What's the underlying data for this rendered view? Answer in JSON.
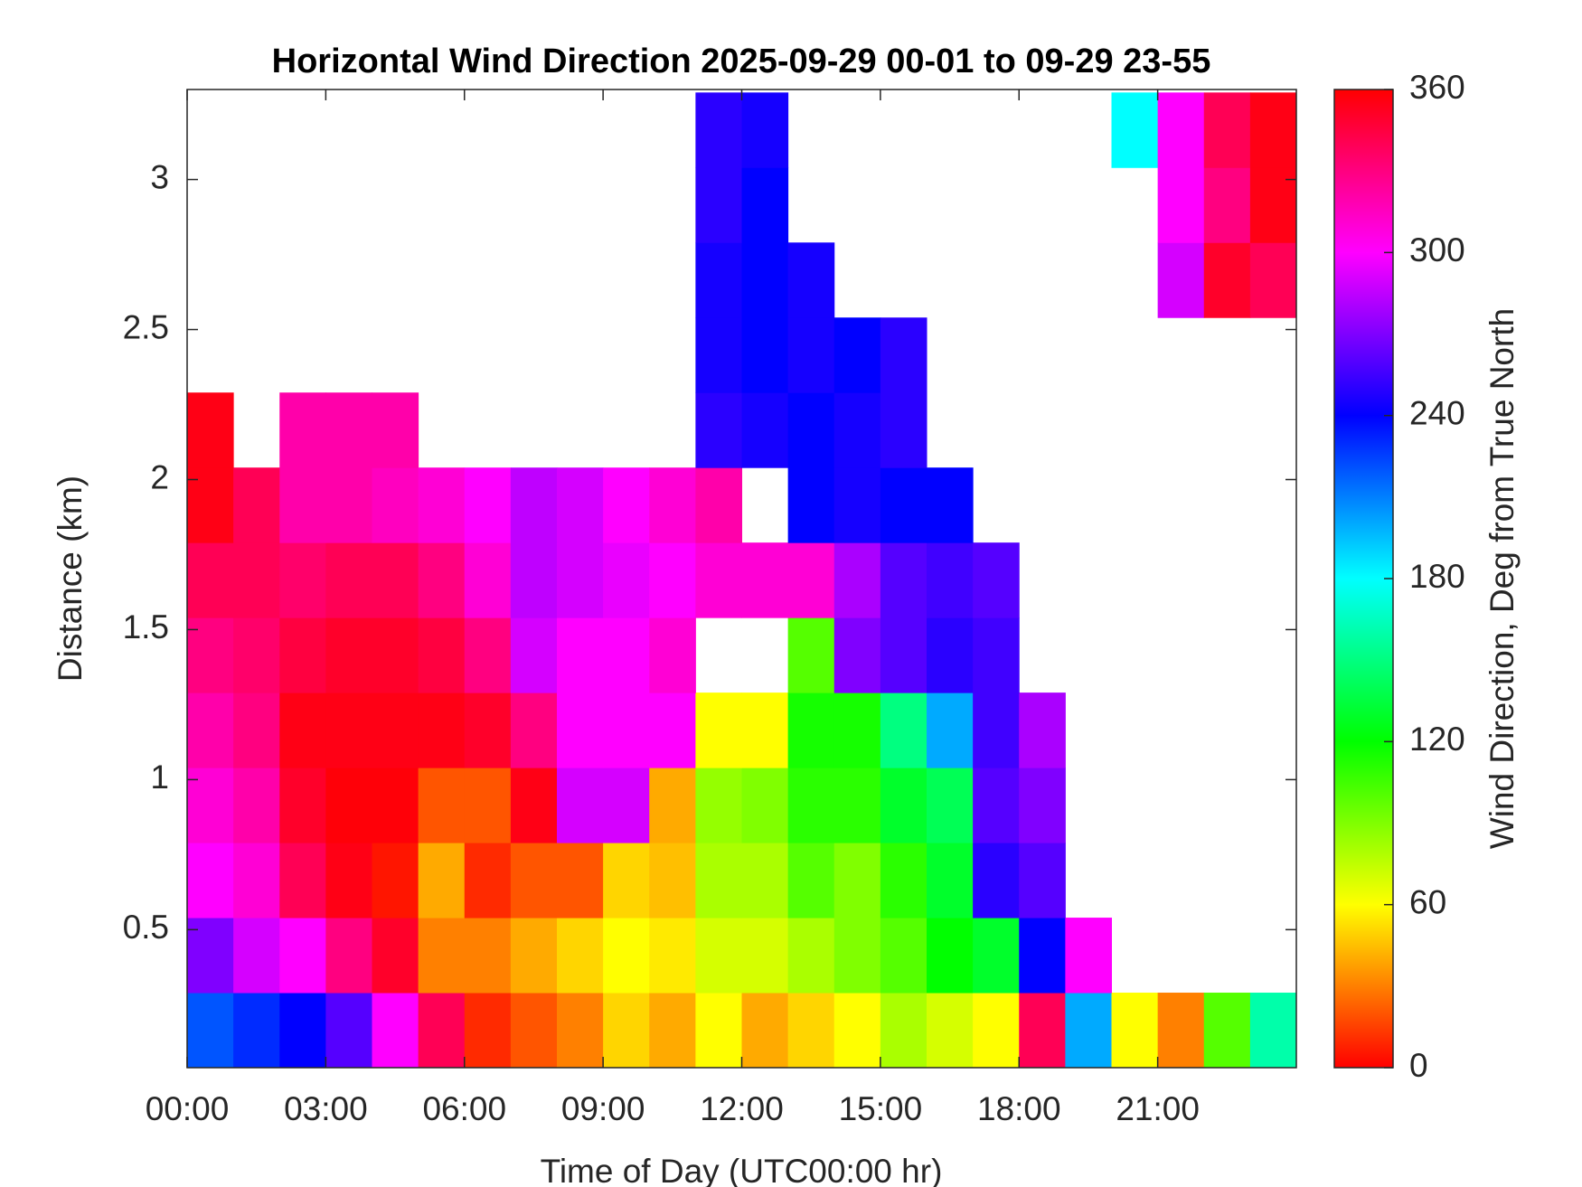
{
  "chart_data": {
    "type": "heatmap",
    "title": "Horizontal Wind Direction 2025-09-29 00-01 to 09-29 23-55",
    "x_label": "Time of Day (UTC00:00 hr)",
    "y_label": "Distance (km)",
    "colorbar_label": "Wind Direction, Deg from True North",
    "colormap": "hsv",
    "xlim": [
      0,
      24
    ],
    "xticks": [
      {
        "value": 0,
        "label": "00:00"
      },
      {
        "value": 3,
        "label": "03:00"
      },
      {
        "value": 6,
        "label": "06:00"
      },
      {
        "value": 9,
        "label": "09:00"
      },
      {
        "value": 12,
        "label": "12:00"
      },
      {
        "value": 15,
        "label": "15:00"
      },
      {
        "value": 18,
        "label": "18:00"
      },
      {
        "value": 21,
        "label": "21:00"
      }
    ],
    "ylim": [
      0.04,
      3.3
    ],
    "yticks": [
      0.5,
      1,
      1.5,
      2,
      2.5,
      3
    ],
    "clim": [
      0,
      360
    ],
    "cticks": [
      0,
      60,
      120,
      180,
      240,
      300,
      360
    ],
    "x_edges": [
      0,
      1,
      2,
      3,
      4,
      5,
      6,
      7,
      8,
      9,
      10,
      11,
      12,
      13,
      14,
      15,
      16,
      17,
      18,
      19,
      20,
      21,
      22,
      23,
      24
    ],
    "y_edges": [
      0.04,
      0.29,
      0.54,
      0.79,
      1.04,
      1.29,
      1.54,
      1.79,
      2.04,
      2.29,
      2.54,
      2.79,
      3.04,
      3.29
    ],
    "z": [
      [
        220,
        230,
        240,
        260,
        300,
        340,
        10,
        20,
        30,
        50,
        40,
        60,
        40,
        50,
        60,
        80,
        70,
        60,
        340,
        200,
        60,
        30,
        100,
        160
      ],
      [
        270,
        290,
        300,
        330,
        350,
        30,
        30,
        40,
        50,
        60,
        55,
        70,
        70,
        80,
        90,
        100,
        120,
        130,
        240,
        300,
        null,
        null,
        null,
        null
      ],
      [
        300,
        310,
        340,
        355,
        5,
        40,
        10,
        20,
        20,
        50,
        45,
        80,
        80,
        100,
        90,
        110,
        130,
        250,
        260,
        null,
        null,
        null,
        null,
        null
      ],
      [
        310,
        320,
        350,
        358,
        358,
        20,
        20,
        355,
        290,
        290,
        40,
        85,
        90,
        110,
        110,
        130,
        140,
        260,
        270,
        null,
        null,
        null,
        null,
        null
      ],
      [
        320,
        330,
        355,
        355,
        355,
        355,
        350,
        330,
        300,
        300,
        300,
        60,
        60,
        115,
        115,
        150,
        200,
        255,
        280,
        null,
        null,
        null,
        null,
        null
      ],
      [
        330,
        335,
        345,
        350,
        350,
        345,
        330,
        290,
        300,
        300,
        310,
        null,
        null,
        100,
        270,
        260,
        250,
        255,
        null,
        null,
        null,
        null,
        null,
        null
      ],
      [
        340,
        340,
        335,
        340,
        340,
        330,
        310,
        285,
        290,
        295,
        300,
        310,
        310,
        310,
        280,
        260,
        255,
        260,
        null,
        null,
        null,
        null,
        null,
        null
      ],
      [
        355,
        340,
        320,
        320,
        315,
        310,
        300,
        285,
        290,
        300,
        310,
        320,
        null,
        240,
        245,
        240,
        240,
        null,
        null,
        null,
        null,
        null,
        null,
        null
      ],
      [
        355,
        null,
        320,
        320,
        320,
        null,
        null,
        null,
        null,
        null,
        null,
        250,
        245,
        240,
        245,
        250,
        null,
        null,
        null,
        null,
        null,
        null,
        null,
        null
      ],
      [
        null,
        null,
        null,
        null,
        null,
        null,
        null,
        null,
        null,
        null,
        null,
        245,
        240,
        245,
        240,
        250,
        null,
        null,
        null,
        null,
        null,
        null,
        null,
        null
      ],
      [
        null,
        null,
        null,
        null,
        null,
        null,
        null,
        null,
        null,
        null,
        null,
        245,
        240,
        245,
        null,
        null,
        null,
        null,
        null,
        null,
        null,
        290,
        350,
        340
      ],
      [
        null,
        null,
        null,
        null,
        null,
        null,
        null,
        null,
        null,
        null,
        null,
        250,
        240,
        null,
        null,
        null,
        null,
        null,
        null,
        null,
        null,
        300,
        330,
        355
      ],
      [
        null,
        null,
        null,
        null,
        null,
        null,
        null,
        null,
        null,
        null,
        null,
        250,
        245,
        null,
        null,
        null,
        null,
        null,
        null,
        null,
        180,
        300,
        340,
        355
      ]
    ]
  }
}
